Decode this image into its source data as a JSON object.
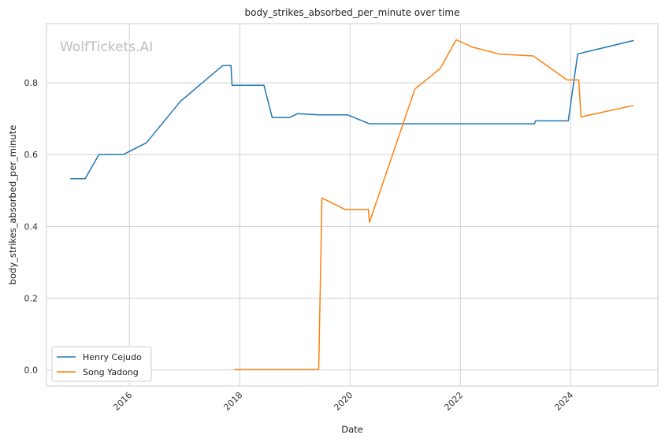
{
  "watermark": "WolfTickets.AI",
  "chart_data": {
    "type": "line",
    "title": "body_strikes_absorbed_per_minute over time",
    "xlabel": "Date",
    "ylabel": "body_strikes_absorbed_per_minute",
    "x_type": "date",
    "xlim": [
      "2014-07-01",
      "2025-08-01"
    ],
    "ylim": [
      -0.045,
      0.965
    ],
    "x_ticks": [
      "2016",
      "2018",
      "2020",
      "2022",
      "2024"
    ],
    "y_ticks": [
      0.0,
      0.2,
      0.4,
      0.6,
      0.8
    ],
    "y_tick_labels": [
      "0.0",
      "0.2",
      "0.4",
      "0.6",
      "0.8"
    ],
    "grid": true,
    "legend_position": "lower-left",
    "series": [
      {
        "name": "Henry Cejudo",
        "color": "#1f77b4",
        "points": [
          [
            "2014-12-06",
            0.533
          ],
          [
            "2015-03-14",
            0.533
          ],
          [
            "2015-06-13",
            0.6
          ],
          [
            "2015-11-21",
            0.6
          ],
          [
            "2016-04-23",
            0.633
          ],
          [
            "2016-12-03",
            0.748
          ],
          [
            "2017-09-09",
            0.848
          ],
          [
            "2017-11-04",
            0.848
          ],
          [
            "2017-11-11",
            0.793
          ],
          [
            "2018-06-10",
            0.793
          ],
          [
            "2018-08-04",
            0.703
          ],
          [
            "2018-11-24",
            0.703
          ],
          [
            "2019-01-19",
            0.714
          ],
          [
            "2019-06-08",
            0.711
          ],
          [
            "2019-12-14",
            0.711
          ],
          [
            "2020-05-09",
            0.686
          ],
          [
            "2023-05-06",
            0.686
          ],
          [
            "2023-05-13",
            0.694
          ],
          [
            "2023-12-16",
            0.694
          ],
          [
            "2024-02-17",
            0.88
          ],
          [
            "2024-03-02",
            0.882
          ],
          [
            "2025-02-22",
            0.918
          ]
        ]
      },
      {
        "name": "Song Yadong",
        "color": "#ff7f0e",
        "points": [
          [
            "2017-11-25",
            0.001
          ],
          [
            "2019-06-08",
            0.001
          ],
          [
            "2019-06-29",
            0.479
          ],
          [
            "2019-11-30",
            0.447
          ],
          [
            "2020-05-02",
            0.447
          ],
          [
            "2020-05-09",
            0.411
          ],
          [
            "2021-03-06",
            0.783
          ],
          [
            "2021-08-21",
            0.84
          ],
          [
            "2021-12-04",
            0.92
          ],
          [
            "2022-03-19",
            0.9
          ],
          [
            "2022-09-17",
            0.88
          ],
          [
            "2023-04-29",
            0.875
          ],
          [
            "2023-12-09",
            0.808
          ],
          [
            "2024-02-24",
            0.808
          ],
          [
            "2024-03-09",
            0.705
          ],
          [
            "2025-02-22",
            0.737
          ]
        ]
      }
    ]
  }
}
